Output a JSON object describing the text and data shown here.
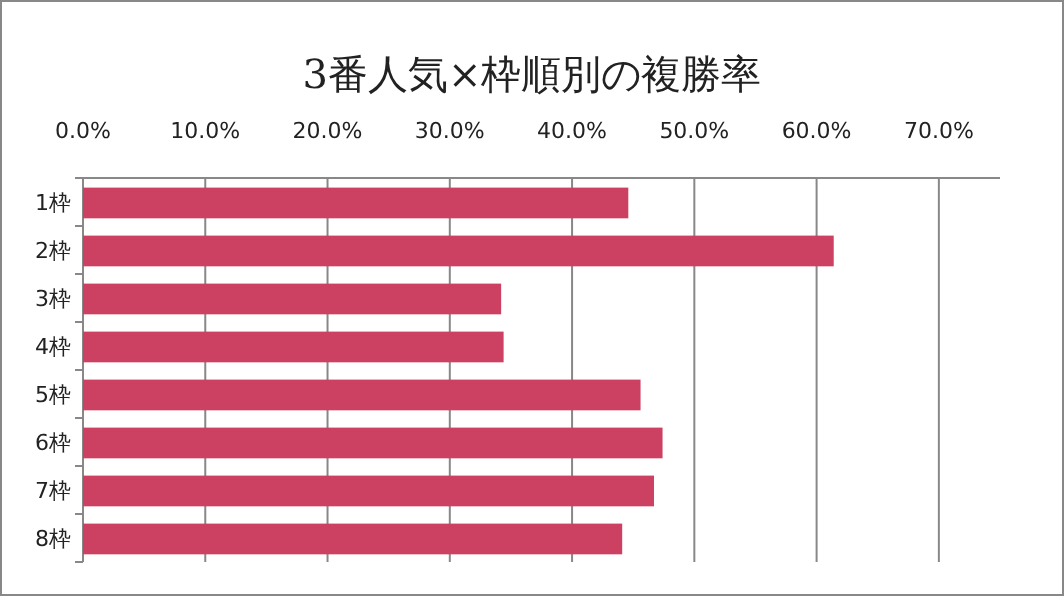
{
  "chart_data": {
    "type": "bar",
    "orientation": "horizontal",
    "title": "3番人気×枠順別の複勝率",
    "categories": [
      "1枠",
      "2枠",
      "3枠",
      "4枠",
      "5枠",
      "6枠",
      "7枠",
      "8枠"
    ],
    "values": [
      44.6,
      61.4,
      34.2,
      34.4,
      45.6,
      47.4,
      46.7,
      44.1
    ],
    "color": "#cc4062",
    "xlim": [
      0,
      75
    ],
    "xticks": [
      {
        "value": 0,
        "label": "0.0%"
      },
      {
        "value": 10,
        "label": "10.0%"
      },
      {
        "value": 20,
        "label": "20.0%"
      },
      {
        "value": 30,
        "label": "30.0%"
      },
      {
        "value": 40,
        "label": "40.0%"
      },
      {
        "value": 50,
        "label": "50.0%"
      },
      {
        "value": 60,
        "label": "60.0%"
      },
      {
        "value": 70,
        "label": "70.0%"
      }
    ],
    "grid": "x"
  }
}
